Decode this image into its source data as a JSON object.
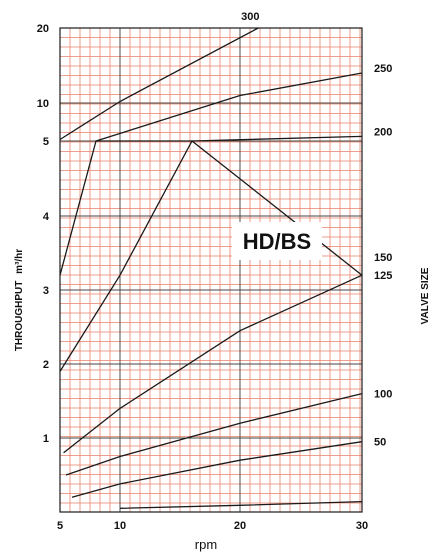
{
  "chart_data": {
    "type": "line",
    "title": "HD/BS",
    "xlabel": "rpm",
    "ylabel": "THROUGHPUT",
    "ylabel_unit": "m³/hr",
    "right_label": "VALVE SIZE",
    "x_ticks": [
      "5",
      "10",
      "20",
      "30"
    ],
    "y_ticks": [
      "1",
      "2",
      "3",
      "4",
      "5",
      "10",
      "20"
    ],
    "colors": {
      "grid": "#e8806a",
      "line": "#1a1a1a",
      "frame": "#1a1a1a"
    },
    "series": [
      {
        "name": "300",
        "x": [
          5,
          10,
          21.5
        ],
        "y": [
          5.2,
          10.2,
          20
        ]
      },
      {
        "name": "250",
        "x": [
          8,
          20,
          30
        ],
        "y": [
          5.0,
          11.0,
          14.0
        ]
      },
      {
        "name": "200",
        "x": [
          5,
          8,
          16,
          30
        ],
        "y": [
          3.2,
          5.0,
          5.0,
          5.6
        ]
      },
      {
        "name": "150",
        "x": [
          5,
          10,
          16,
          30
        ],
        "y": [
          1.9,
          3.2,
          5.0,
          3.2
        ]
      },
      {
        "name": "125",
        "x": [
          5.3,
          10,
          20,
          30
        ],
        "y": [
          0.8,
          1.4,
          2.45,
          3.2
        ]
      },
      {
        "name": "100",
        "x": [
          5.5,
          10,
          20,
          30
        ],
        "y": [
          0.5,
          0.75,
          1.2,
          1.6
        ]
      },
      {
        "name": "50",
        "x": [
          6,
          10,
          20,
          30
        ],
        "y": [
          0.2,
          0.38,
          0.7,
          0.95
        ]
      },
      {
        "name": "",
        "x": [
          10,
          20,
          30
        ],
        "y": [
          0.05,
          0.09,
          0.14
        ]
      }
    ]
  }
}
